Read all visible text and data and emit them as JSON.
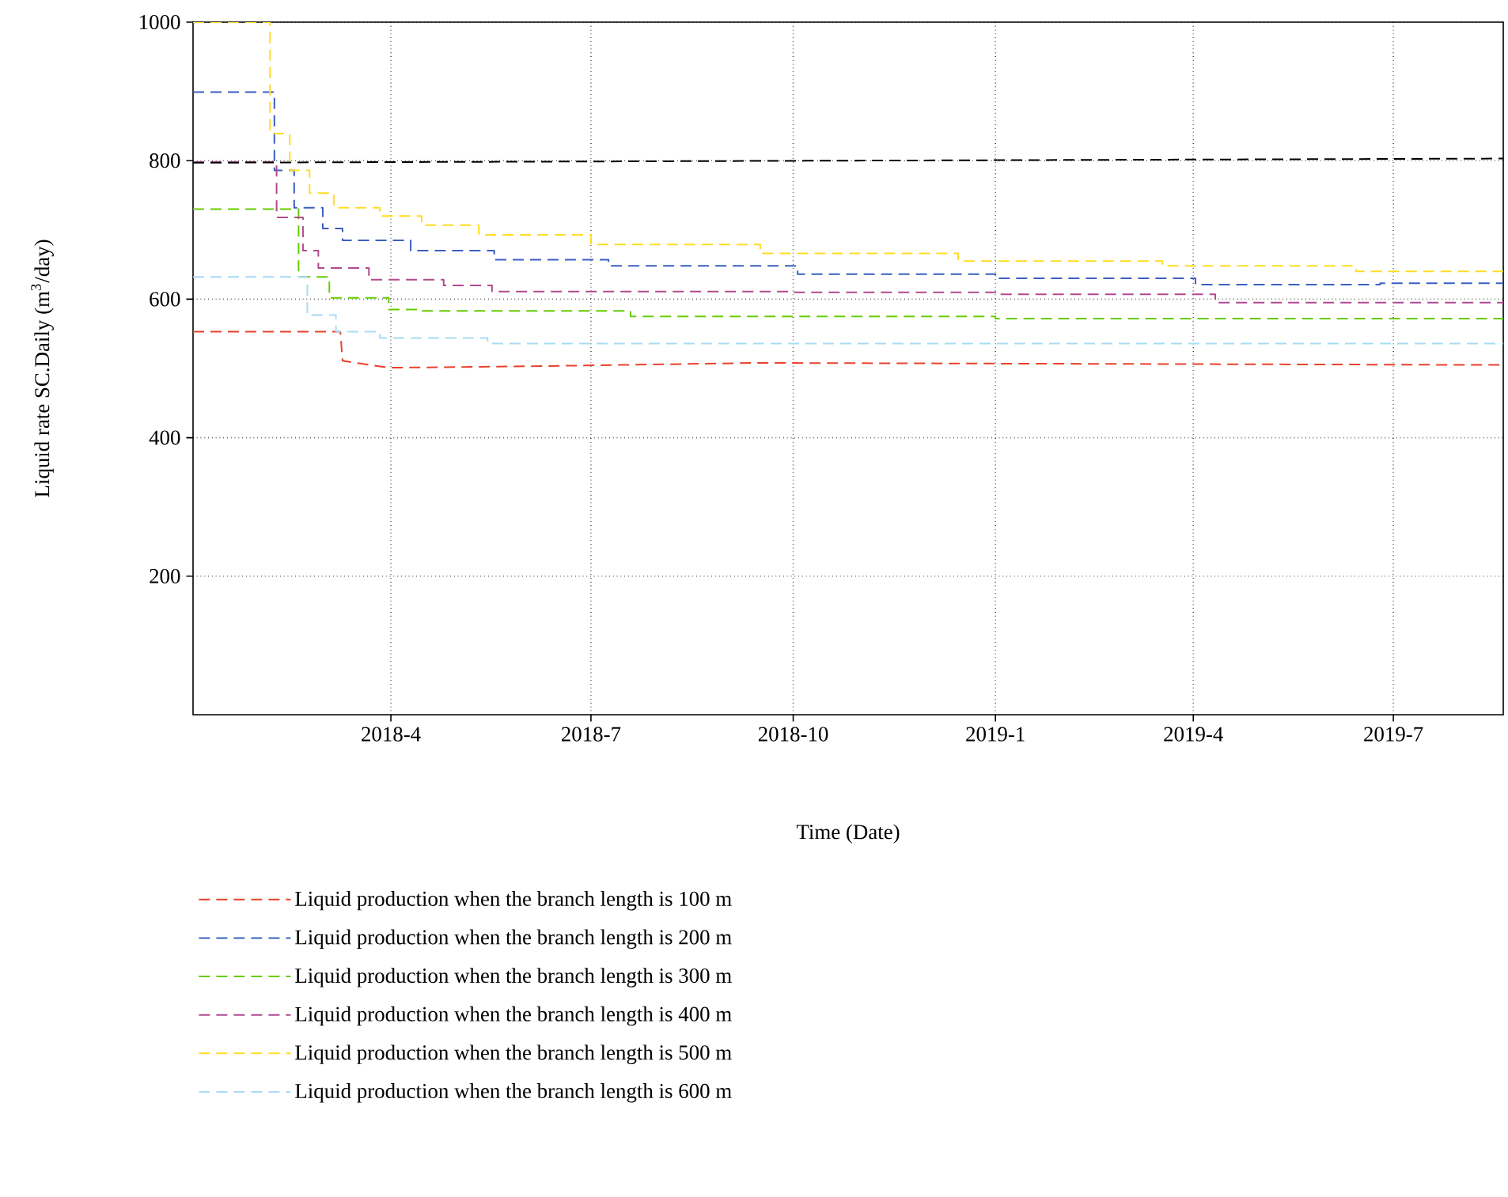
{
  "chart_data": {
    "type": "step",
    "xlabel": "Time (Date)",
    "ylabel": "Liquid rate SC.Daily (m$^{3}$/day)",
    "xlim": [
      "2018-01-01",
      "2019-08-20"
    ],
    "ylim": [
      0,
      1000
    ],
    "xticks": [
      {
        "value": "2018-04-01",
        "label": "2018-4"
      },
      {
        "value": "2018-07-01",
        "label": "2018-7"
      },
      {
        "value": "2018-10-01",
        "label": "2018-10"
      },
      {
        "value": "2019-01-01",
        "label": "2019-1"
      },
      {
        "value": "2019-04-01",
        "label": "2019-4"
      },
      {
        "value": "2019-07-01",
        "label": "2019-7"
      }
    ],
    "yticks": [
      200,
      400,
      600,
      800,
      1000
    ],
    "grid": true,
    "legend": "bottom",
    "line_style": "dashed",
    "series": [
      {
        "name": "Liquid production when the branch length is 100 m",
        "color": "#e8412c",
        "type": "line",
        "x": [
          "2018-01-01",
          "2018-03-09",
          "2018-03-10",
          "2018-03-31",
          "2018-06-01",
          "2018-09-15",
          "2019-01-01",
          "2019-08-20"
        ],
        "values": [
          553,
          553,
          511,
          501,
          503,
          508,
          507,
          505
        ]
      },
      {
        "name": "Liquid production when the branch length is 200 m",
        "color": "#3a5fbf",
        "x": [
          "2018-01-01",
          "2018-02-07",
          "2018-02-16",
          "2018-03-01",
          "2018-03-10",
          "2018-04-10",
          "2018-05-18",
          "2018-07-09",
          "2018-10-03",
          "2019-01-01",
          "2019-04-02",
          "2019-06-25",
          "2019-08-20"
        ],
        "values": [
          899,
          786,
          732,
          702,
          685,
          670,
          657,
          648,
          636,
          630,
          621,
          623,
          622
        ]
      },
      {
        "name": "Liquid production when the branch length is 300 m",
        "color": "#66cc00",
        "x": [
          "2018-01-01",
          "2018-02-18",
          "2018-03-04",
          "2018-03-31",
          "2018-04-15",
          "2018-07-19",
          "2019-01-01",
          "2019-08-20"
        ],
        "values": [
          730,
          632,
          602,
          585,
          583,
          575,
          572,
          569
        ]
      },
      {
        "name": "Liquid production when the branch length is 400 m",
        "color": "#b04a8f",
        "x": [
          "2018-01-01",
          "2018-02-08",
          "2018-02-20",
          "2018-02-27",
          "2018-03-22",
          "2018-04-25",
          "2018-05-17",
          "2018-10-01",
          "2019-01-01",
          "2019-04-11",
          "2019-08-20"
        ],
        "values": [
          798,
          718,
          670,
          645,
          628,
          620,
          611,
          610,
          607,
          595,
          594
        ]
      },
      {
        "name": "Liquid production when the branch length is 500 m",
        "color": "#ffdd22",
        "x": [
          "2018-01-01",
          "2018-02-05",
          "2018-02-14",
          "2018-02-23",
          "2018-03-06",
          "2018-03-27",
          "2018-04-15",
          "2018-05-11",
          "2018-07-01",
          "2018-09-16",
          "2018-12-15",
          "2019-03-18",
          "2019-06-14",
          "2019-08-20"
        ],
        "values": [
          1000,
          839,
          786,
          753,
          732,
          720,
          707,
          693,
          679,
          666,
          655,
          648,
          640,
          640
        ]
      },
      {
        "name": "Liquid production when the branch length is 600 m",
        "color": "#a8dcf5",
        "x": [
          "2018-01-01",
          "2018-02-22",
          "2018-03-07",
          "2018-03-27",
          "2018-05-15",
          "2019-08-20"
        ],
        "values": [
          632,
          577,
          553,
          544,
          536,
          536
        ]
      },
      {
        "color": "#000000",
        "type": "line",
        "x": [
          "2018-01-01",
          "2019-08-20"
        ],
        "values": [
          797,
          803
        ]
      }
    ]
  }
}
